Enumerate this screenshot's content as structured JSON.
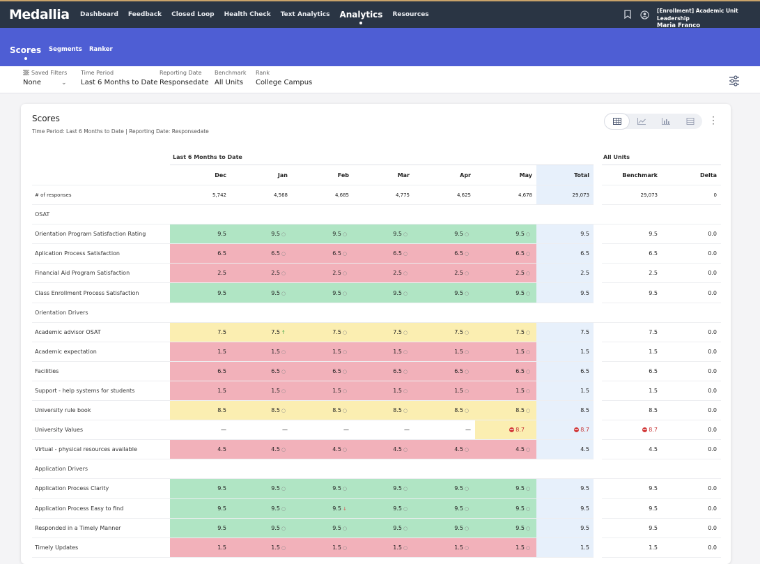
{
  "app": {
    "logo": "Medallia"
  },
  "nav": [
    "Dashboard",
    "Feedback",
    "Closed Loop",
    "Health Check",
    "Text Analytics",
    "Analytics",
    "Resources"
  ],
  "user": {
    "role": "[Enrollment] Academic Unit Leadership",
    "name": "Maria Franco"
  },
  "subtabs": [
    "Scores",
    "Segments",
    "Ranker"
  ],
  "filters": {
    "saved_label": "Saved Filters",
    "saved_value": "None",
    "period_label": "Time Period",
    "period_value": "Last 6 Months to Date",
    "reporting_label": "Reporting Date",
    "reporting_value": "Responsedate",
    "benchmark_label": "Benchmark",
    "benchmark_value": "All Units",
    "rank_label": "Rank",
    "rank_value": "College Campus"
  },
  "card": {
    "title": "Scores",
    "subtitle": "Time Period: Last 6 Months to Date | Reporting Date: Responsedate",
    "group_period": "Last 6 Months to Date",
    "group_units": "All Units"
  },
  "columns": [
    "Dec",
    "Jan",
    "Feb",
    "Mar",
    "Apr",
    "May",
    "Total",
    "Benchmark",
    "Delta"
  ],
  "responses": {
    "label": "# of responses",
    "values": [
      "5,742",
      "4,568",
      "4,685",
      "4,775",
      "4,625",
      "4,678",
      "29,073",
      "29,073",
      "0"
    ]
  },
  "sections": {
    "osat": "OSAT",
    "orientation": "Orientation Drivers",
    "application": "Application Drivers"
  },
  "rows": [
    {
      "name": "Orientation Program Satisfaction Rating",
      "months": [
        "9.5",
        "9.5",
        "9.5",
        "9.5",
        "9.5",
        "9.5"
      ],
      "total": "9.5",
      "benchmark": "9.5",
      "delta": "0.0"
    },
    {
      "name": "Aplication Process Satisfaction",
      "months": [
        "6.5",
        "6.5",
        "6.5",
        "6.5",
        "6.5",
        "6.5"
      ],
      "total": "6.5",
      "benchmark": "6.5",
      "delta": "0.0"
    },
    {
      "name": "Financial Aid Program Satisfaction",
      "months": [
        "2.5",
        "2.5",
        "2.5",
        "2.5",
        "2.5",
        "2.5"
      ],
      "total": "2.5",
      "benchmark": "2.5",
      "delta": "0.0"
    },
    {
      "name": "Class Enrollment Process Satisfaction",
      "months": [
        "9.5",
        "9.5",
        "9.5",
        "9.5",
        "9.5",
        "9.5"
      ],
      "total": "9.5",
      "benchmark": "9.5",
      "delta": "0.0"
    },
    {
      "name": "Academic advisor OSAT",
      "months": [
        "7.5",
        "7.5",
        "7.5",
        "7.5",
        "7.5",
        "7.5"
      ],
      "total": "7.5",
      "benchmark": "7.5",
      "delta": "0.0"
    },
    {
      "name": "Academic expectation",
      "months": [
        "1.5",
        "1.5",
        "1.5",
        "1.5",
        "1.5",
        "1.5"
      ],
      "total": "1.5",
      "benchmark": "1.5",
      "delta": "0.0"
    },
    {
      "name": "Facilities",
      "months": [
        "6.5",
        "6.5",
        "6.5",
        "6.5",
        "6.5",
        "6.5"
      ],
      "total": "6.5",
      "benchmark": "6.5",
      "delta": "0.0"
    },
    {
      "name": "Support - help systems for students",
      "months": [
        "1.5",
        "1.5",
        "1.5",
        "1.5",
        "1.5",
        "1.5"
      ],
      "total": "1.5",
      "benchmark": "1.5",
      "delta": "0.0"
    },
    {
      "name": "University rule book",
      "months": [
        "8.5",
        "8.5",
        "8.5",
        "8.5",
        "8.5",
        "8.5"
      ],
      "total": "8.5",
      "benchmark": "8.5",
      "delta": "0.0"
    },
    {
      "name": "University Values",
      "months": [
        "—",
        "—",
        "—",
        "—",
        "—",
        "8.7"
      ],
      "total": "8.7",
      "benchmark": "8.7",
      "delta": "0.0"
    },
    {
      "name": "Virtual - physical resources available",
      "months": [
        "4.5",
        "4.5",
        "4.5",
        "4.5",
        "4.5",
        "4.5"
      ],
      "total": "4.5",
      "benchmark": "4.5",
      "delta": "0.0"
    },
    {
      "name": "Application Process Clarity",
      "months": [
        "9.5",
        "9.5",
        "9.5",
        "9.5",
        "9.5",
        "9.5"
      ],
      "total": "9.5",
      "benchmark": "9.5",
      "delta": "0.0"
    },
    {
      "name": "Application Process Easy to find",
      "months": [
        "9.5",
        "9.5",
        "9.5",
        "9.5",
        "9.5",
        "9.5"
      ],
      "total": "9.5",
      "benchmark": "9.5",
      "delta": "0.0"
    },
    {
      "name": "Responded in a Timely Manner",
      "months": [
        "9.5",
        "9.5",
        "9.5",
        "9.5",
        "9.5",
        "9.5"
      ],
      "total": "9.5",
      "benchmark": "9.5",
      "delta": "0.0"
    },
    {
      "name": "Timely Updates",
      "months": [
        "1.5",
        "1.5",
        "1.5",
        "1.5",
        "1.5",
        "1.5"
      ],
      "total": "1.5",
      "benchmark": "1.5",
      "delta": "0.0"
    }
  ],
  "colors": {
    "green": "#b0e5c4",
    "red": "#f2b1ba",
    "yellow": "#fbeeb1",
    "total_bg": "#e7f0fb",
    "header": "#2a3544",
    "subbar": "#4e5ed4"
  }
}
